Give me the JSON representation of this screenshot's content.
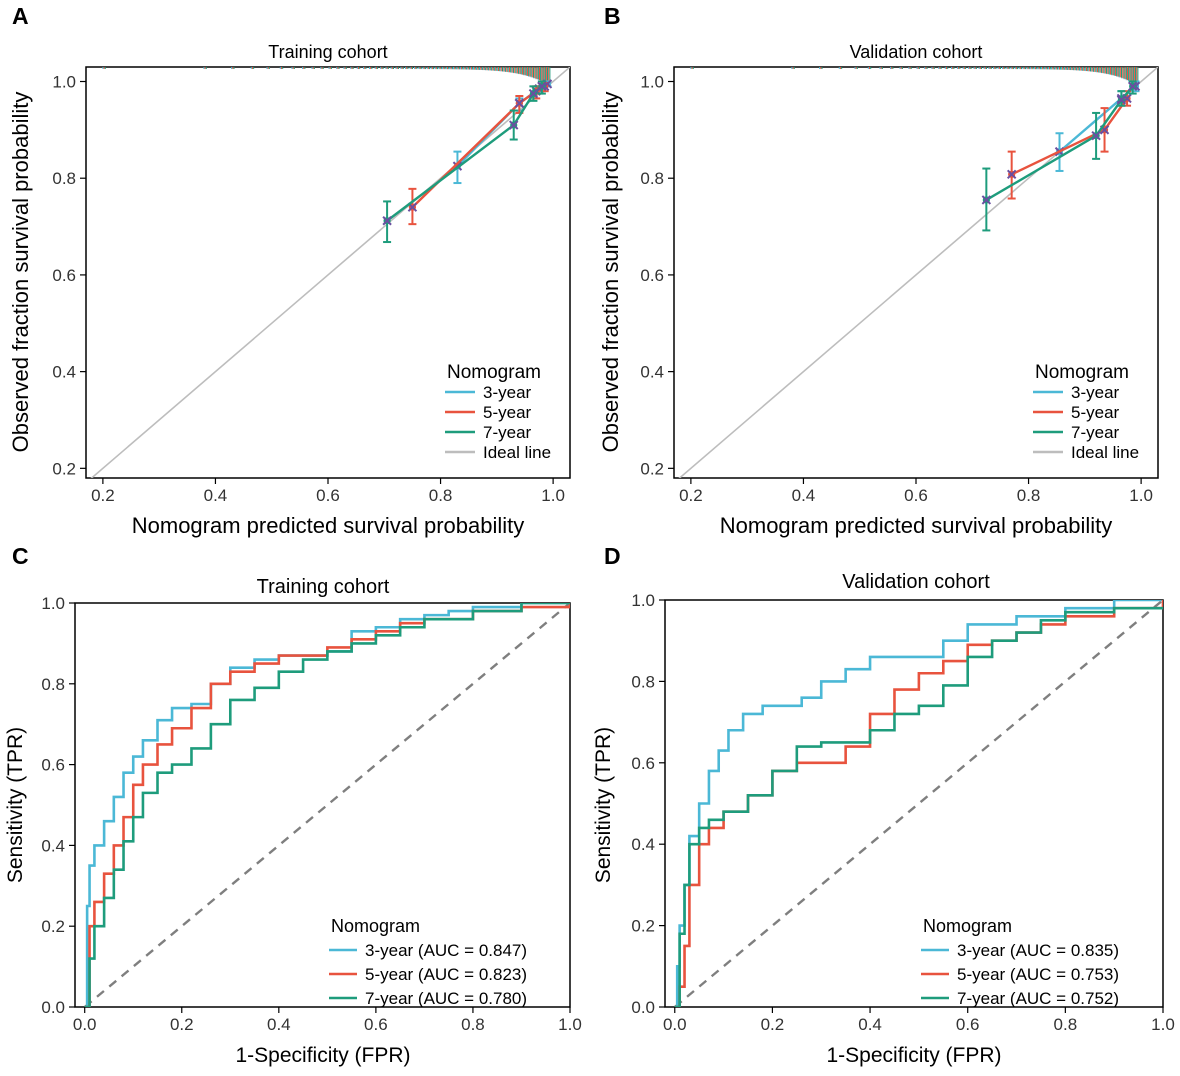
{
  "colors": {
    "y3": "#4bb8d6",
    "y5": "#e8533e",
    "y7": "#1e9c7c",
    "ideal": "#bdbdbd",
    "cross": "#6a4fa0",
    "diag": "#7f7f7f"
  },
  "chart_data": [
    {
      "panel": "A",
      "type": "line",
      "title": "Training cohort",
      "xlabel": "Nomogram predicted survival probability",
      "ylabel": "Observed fraction survival probability",
      "xlim": [
        0.17,
        1.03
      ],
      "ylim": [
        0.18,
        1.03
      ],
      "xticks": [
        0.2,
        0.4,
        0.6,
        0.8,
        1.0
      ],
      "yticks": [
        0.2,
        0.4,
        0.6,
        0.8,
        1.0
      ],
      "xtick_labels": [
        "0.2",
        "0.4",
        "0.6",
        "0.8",
        "1.0"
      ],
      "ytick_labels": [
        "0.2",
        "0.4",
        "0.6",
        "0.8",
        "1.0"
      ],
      "legend_title": "Nomogram",
      "legend_labels": [
        "3-year",
        "5-year",
        "7-year",
        "Ideal line"
      ],
      "ideal_line": [
        [
          0.17,
          0.17
        ],
        [
          1.03,
          1.03
        ]
      ],
      "series": [
        {
          "name": "3-year",
          "x": [
            0.83,
            0.94,
            0.975,
            0.99
          ],
          "y": [
            0.825,
            0.955,
            0.985,
            0.995
          ],
          "err_low": [
            0.79,
            0.94,
            0.975,
            0.99
          ],
          "err_high": [
            0.855,
            0.965,
            0.99,
            1.0
          ]
        },
        {
          "name": "5-year",
          "x": [
            0.75,
            0.94,
            0.97,
            0.985
          ],
          "y": [
            0.74,
            0.955,
            0.98,
            0.99
          ],
          "err_low": [
            0.705,
            0.935,
            0.965,
            0.98
          ],
          "err_high": [
            0.778,
            0.97,
            0.99,
            0.997
          ]
        },
        {
          "name": "7-year",
          "x": [
            0.705,
            0.93,
            0.965,
            0.98
          ],
          "y": [
            0.712,
            0.91,
            0.975,
            0.99
          ],
          "err_low": [
            0.668,
            0.88,
            0.96,
            0.975
          ],
          "err_high": [
            0.752,
            0.94,
            0.99,
            1.0
          ]
        }
      ]
    },
    {
      "panel": "B",
      "type": "line",
      "title": "Validation cohort",
      "xlabel": "Nomogram predicted survival probability",
      "ylabel": "Observed fraction survival probability",
      "xlim": [
        0.17,
        1.03
      ],
      "ylim": [
        0.18,
        1.03
      ],
      "xticks": [
        0.2,
        0.4,
        0.6,
        0.8,
        1.0
      ],
      "yticks": [
        0.2,
        0.4,
        0.6,
        0.8,
        1.0
      ],
      "xtick_labels": [
        "0.2",
        "0.4",
        "0.6",
        "0.8",
        "1.0"
      ],
      "ytick_labels": [
        "0.2",
        "0.4",
        "0.6",
        "0.8",
        "1.0"
      ],
      "legend_title": "Nomogram",
      "legend_labels": [
        "3-year",
        "5-year",
        "7-year",
        "Ideal line"
      ],
      "ideal_line": [
        [
          0.17,
          0.17
        ],
        [
          1.03,
          1.03
        ]
      ],
      "series": [
        {
          "name": "3-year",
          "x": [
            0.855,
            0.965,
            0.99
          ],
          "y": [
            0.855,
            0.965,
            0.99
          ],
          "err_low": [
            0.815,
            0.95,
            0.98
          ],
          "err_high": [
            0.893,
            0.98,
            1.0
          ]
        },
        {
          "name": "5-year",
          "x": [
            0.77,
            0.935,
            0.975
          ],
          "y": [
            0.808,
            0.9,
            0.965
          ],
          "err_low": [
            0.758,
            0.855,
            0.95
          ],
          "err_high": [
            0.855,
            0.945,
            0.98
          ]
        },
        {
          "name": "7-year",
          "x": [
            0.725,
            0.92,
            0.965,
            0.985
          ],
          "y": [
            0.755,
            0.888,
            0.962,
            0.99
          ],
          "err_low": [
            0.692,
            0.84,
            0.95,
            0.975
          ],
          "err_high": [
            0.82,
            0.935,
            0.98,
            1.0
          ]
        }
      ]
    },
    {
      "panel": "C",
      "type": "line",
      "title": "Training cohort",
      "xlabel": "1-Specificity (FPR)",
      "ylabel": "Sensitivity (TPR)",
      "xlim": [
        -0.02,
        1.0
      ],
      "ylim": [
        0.0,
        1.0
      ],
      "xticks": [
        0.0,
        0.2,
        0.4,
        0.6,
        0.8,
        1.0
      ],
      "yticks": [
        0.0,
        0.2,
        0.4,
        0.6,
        0.8,
        1.0
      ],
      "xtick_labels": [
        "0.0",
        "0.2",
        "0.4",
        "0.6",
        "0.8",
        "1.0"
      ],
      "ytick_labels": [
        "0.0",
        "0.2",
        "0.4",
        "0.6",
        "0.8",
        "1.0"
      ],
      "legend_title": "Nomogram",
      "legend_labels": [
        "3-year (AUC = 0.847)",
        "5-year (AUC = 0.823)",
        "7-year (AUC = 0.780)"
      ],
      "series": [
        {
          "name": "3-year",
          "x": [
            0,
            0.005,
            0.01,
            0.02,
            0.04,
            0.06,
            0.08,
            0.1,
            0.12,
            0.15,
            0.18,
            0.22,
            0.26,
            0.3,
            0.35,
            0.4,
            0.5,
            0.55,
            0.6,
            0.65,
            0.7,
            0.75,
            0.8,
            0.85,
            0.9,
            1.0
          ],
          "y": [
            0,
            0.25,
            0.35,
            0.4,
            0.46,
            0.52,
            0.58,
            0.62,
            0.66,
            0.71,
            0.74,
            0.75,
            0.8,
            0.84,
            0.86,
            0.87,
            0.88,
            0.93,
            0.94,
            0.96,
            0.97,
            0.98,
            0.99,
            0.99,
            1.0,
            1.0
          ]
        },
        {
          "name": "5-year",
          "x": [
            0,
            0.01,
            0.02,
            0.04,
            0.06,
            0.08,
            0.1,
            0.12,
            0.15,
            0.18,
            0.22,
            0.26,
            0.3,
            0.35,
            0.4,
            0.45,
            0.5,
            0.55,
            0.6,
            0.65,
            0.7,
            0.8,
            0.9,
            1.0
          ],
          "y": [
            0,
            0.2,
            0.26,
            0.33,
            0.4,
            0.47,
            0.55,
            0.6,
            0.65,
            0.69,
            0.74,
            0.8,
            0.83,
            0.85,
            0.87,
            0.87,
            0.89,
            0.91,
            0.93,
            0.95,
            0.96,
            0.98,
            0.99,
            1.0
          ]
        },
        {
          "name": "7-year",
          "x": [
            0,
            0.01,
            0.02,
            0.04,
            0.06,
            0.08,
            0.1,
            0.12,
            0.15,
            0.18,
            0.22,
            0.26,
            0.3,
            0.35,
            0.4,
            0.45,
            0.5,
            0.55,
            0.6,
            0.65,
            0.7,
            0.8,
            0.9,
            1.0
          ],
          "y": [
            0,
            0.12,
            0.2,
            0.27,
            0.34,
            0.41,
            0.47,
            0.53,
            0.58,
            0.6,
            0.64,
            0.7,
            0.76,
            0.79,
            0.83,
            0.86,
            0.88,
            0.9,
            0.92,
            0.94,
            0.96,
            0.98,
            1.0,
            1.0
          ]
        }
      ]
    },
    {
      "panel": "D",
      "type": "line",
      "title": "Validation cohort",
      "xlabel": "1-Specificity (FPR)",
      "ylabel": "Sensitivity (TPR)",
      "xlim": [
        -0.02,
        1.0
      ],
      "ylim": [
        0.0,
        1.0
      ],
      "xticks": [
        0.0,
        0.2,
        0.4,
        0.6,
        0.8,
        1.0
      ],
      "yticks": [
        0.0,
        0.2,
        0.4,
        0.6,
        0.8,
        1.0
      ],
      "xtick_labels": [
        "0.0",
        "0.2",
        "0.4",
        "0.6",
        "0.8",
        "1.0"
      ],
      "ytick_labels": [
        "0.0",
        "0.2",
        "0.4",
        "0.6",
        "0.8",
        "1.0"
      ],
      "legend_title": "Nomogram",
      "legend_labels": [
        "3-year (AUC = 0.835)",
        "5-year (AUC = 0.753)",
        "7-year (AUC = 0.752)"
      ],
      "series": [
        {
          "name": "3-year",
          "x": [
            0,
            0.005,
            0.01,
            0.02,
            0.03,
            0.05,
            0.07,
            0.09,
            0.11,
            0.14,
            0.18,
            0.22,
            0.26,
            0.3,
            0.35,
            0.4,
            0.5,
            0.55,
            0.6,
            0.65,
            0.7,
            0.8,
            0.9,
            1.0
          ],
          "y": [
            0,
            0.1,
            0.2,
            0.3,
            0.42,
            0.5,
            0.58,
            0.63,
            0.68,
            0.72,
            0.74,
            0.74,
            0.76,
            0.8,
            0.83,
            0.86,
            0.86,
            0.9,
            0.94,
            0.94,
            0.96,
            0.98,
            1.0,
            1.0
          ]
        },
        {
          "name": "5-year",
          "x": [
            0,
            0.01,
            0.02,
            0.03,
            0.05,
            0.07,
            0.1,
            0.15,
            0.2,
            0.25,
            0.3,
            0.35,
            0.4,
            0.45,
            0.5,
            0.55,
            0.6,
            0.65,
            0.7,
            0.75,
            0.8,
            0.9,
            1.0
          ],
          "y": [
            0,
            0.05,
            0.15,
            0.3,
            0.4,
            0.44,
            0.48,
            0.52,
            0.58,
            0.6,
            0.6,
            0.64,
            0.72,
            0.78,
            0.82,
            0.85,
            0.89,
            0.9,
            0.92,
            0.94,
            0.96,
            0.98,
            1.0
          ]
        },
        {
          "name": "7-year",
          "x": [
            0,
            0.01,
            0.02,
            0.03,
            0.05,
            0.07,
            0.1,
            0.15,
            0.2,
            0.25,
            0.3,
            0.35,
            0.4,
            0.45,
            0.5,
            0.55,
            0.6,
            0.65,
            0.7,
            0.75,
            0.8,
            0.9,
            1.0
          ],
          "y": [
            0,
            0.18,
            0.3,
            0.4,
            0.44,
            0.46,
            0.48,
            0.52,
            0.58,
            0.64,
            0.65,
            0.65,
            0.68,
            0.72,
            0.74,
            0.79,
            0.86,
            0.9,
            0.92,
            0.95,
            0.97,
            0.98,
            0.98
          ]
        }
      ]
    }
  ]
}
